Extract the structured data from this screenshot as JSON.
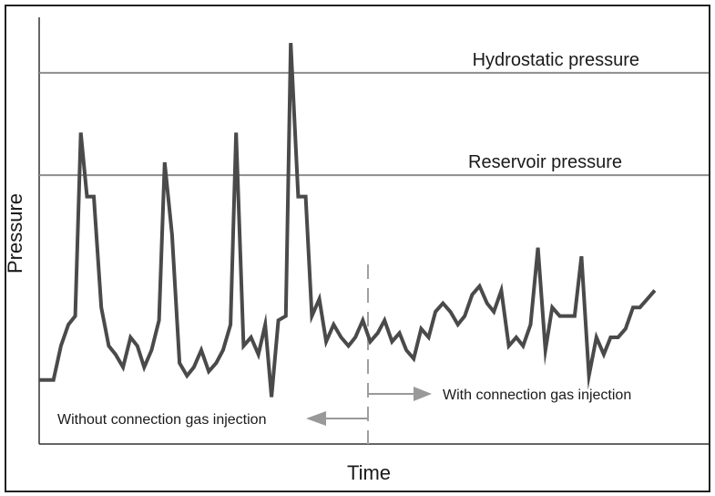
{
  "chart_data": {
    "type": "line",
    "title": "",
    "xlabel": "Time",
    "ylabel": "Pressure",
    "grid": false,
    "reference_lines": [
      {
        "label": "Hydrostatic pressure",
        "y": 87
      },
      {
        "label": "Reservoir pressure",
        "y": 63
      }
    ],
    "divider": {
      "x": 50,
      "left_label": "Without connection gas injection",
      "right_label": "With connection gas injection"
    },
    "xlim": [
      0,
      100
    ],
    "ylim": [
      0,
      100
    ],
    "series": [
      {
        "values": [
          [
            0.0,
            15
          ],
          [
            2.3,
            15
          ],
          [
            3.5,
            23
          ],
          [
            4.7,
            28
          ],
          [
            5.8,
            30
          ],
          [
            6.7,
            73
          ],
          [
            7.7,
            58
          ],
          [
            8.8,
            58
          ],
          [
            10.0,
            32
          ],
          [
            11.2,
            23
          ],
          [
            12.3,
            21
          ],
          [
            13.5,
            18
          ],
          [
            14.7,
            25
          ],
          [
            15.8,
            23
          ],
          [
            16.9,
            18
          ],
          [
            18.1,
            22
          ],
          [
            19.3,
            29
          ],
          [
            20.2,
            66
          ],
          [
            21.4,
            49
          ],
          [
            22.6,
            19
          ],
          [
            23.8,
            16
          ],
          [
            24.9,
            18
          ],
          [
            26.1,
            22
          ],
          [
            27.3,
            17
          ],
          [
            28.5,
            19
          ],
          [
            29.6,
            22
          ],
          [
            30.8,
            28
          ],
          [
            31.7,
            73
          ],
          [
            32.9,
            23
          ],
          [
            34.1,
            25
          ],
          [
            35.3,
            21
          ],
          [
            36.4,
            28
          ],
          [
            37.4,
            11
          ],
          [
            38.5,
            29
          ],
          [
            39.7,
            30
          ],
          [
            40.5,
            94
          ],
          [
            41.7,
            58
          ],
          [
            42.9,
            58
          ],
          [
            43.9,
            30
          ],
          [
            45.1,
            34
          ],
          [
            46.2,
            24
          ],
          [
            47.4,
            28
          ],
          [
            48.6,
            25
          ],
          [
            49.8,
            23
          ],
          [
            50.9,
            25
          ],
          [
            52.1,
            29
          ],
          [
            53.3,
            24
          ],
          [
            54.5,
            26
          ],
          [
            55.6,
            29
          ],
          [
            56.8,
            24
          ],
          [
            58.0,
            26
          ],
          [
            59.1,
            22
          ],
          [
            60.3,
            20
          ],
          [
            61.5,
            27
          ],
          [
            62.7,
            25
          ],
          [
            63.8,
            31
          ],
          [
            65.0,
            33
          ],
          [
            66.2,
            31
          ],
          [
            67.4,
            28
          ],
          [
            68.5,
            30
          ],
          [
            69.7,
            35
          ],
          [
            70.9,
            37
          ],
          [
            72.1,
            33
          ],
          [
            73.2,
            31
          ],
          [
            74.4,
            36
          ],
          [
            75.6,
            23
          ],
          [
            76.8,
            25
          ],
          [
            77.9,
            23
          ],
          [
            79.1,
            28
          ],
          [
            80.3,
            46
          ],
          [
            81.5,
            22
          ],
          [
            82.6,
            32
          ],
          [
            83.8,
            30
          ],
          [
            85.0,
            30
          ],
          [
            86.2,
            30
          ],
          [
            87.3,
            44
          ],
          [
            88.5,
            16
          ],
          [
            89.7,
            25
          ],
          [
            90.9,
            21
          ],
          [
            92.0,
            25
          ],
          [
            93.2,
            25
          ],
          [
            94.4,
            27
          ],
          [
            95.6,
            32
          ],
          [
            96.7,
            32
          ],
          [
            97.9,
            34
          ],
          [
            99.1,
            36
          ]
        ]
      }
    ]
  }
}
